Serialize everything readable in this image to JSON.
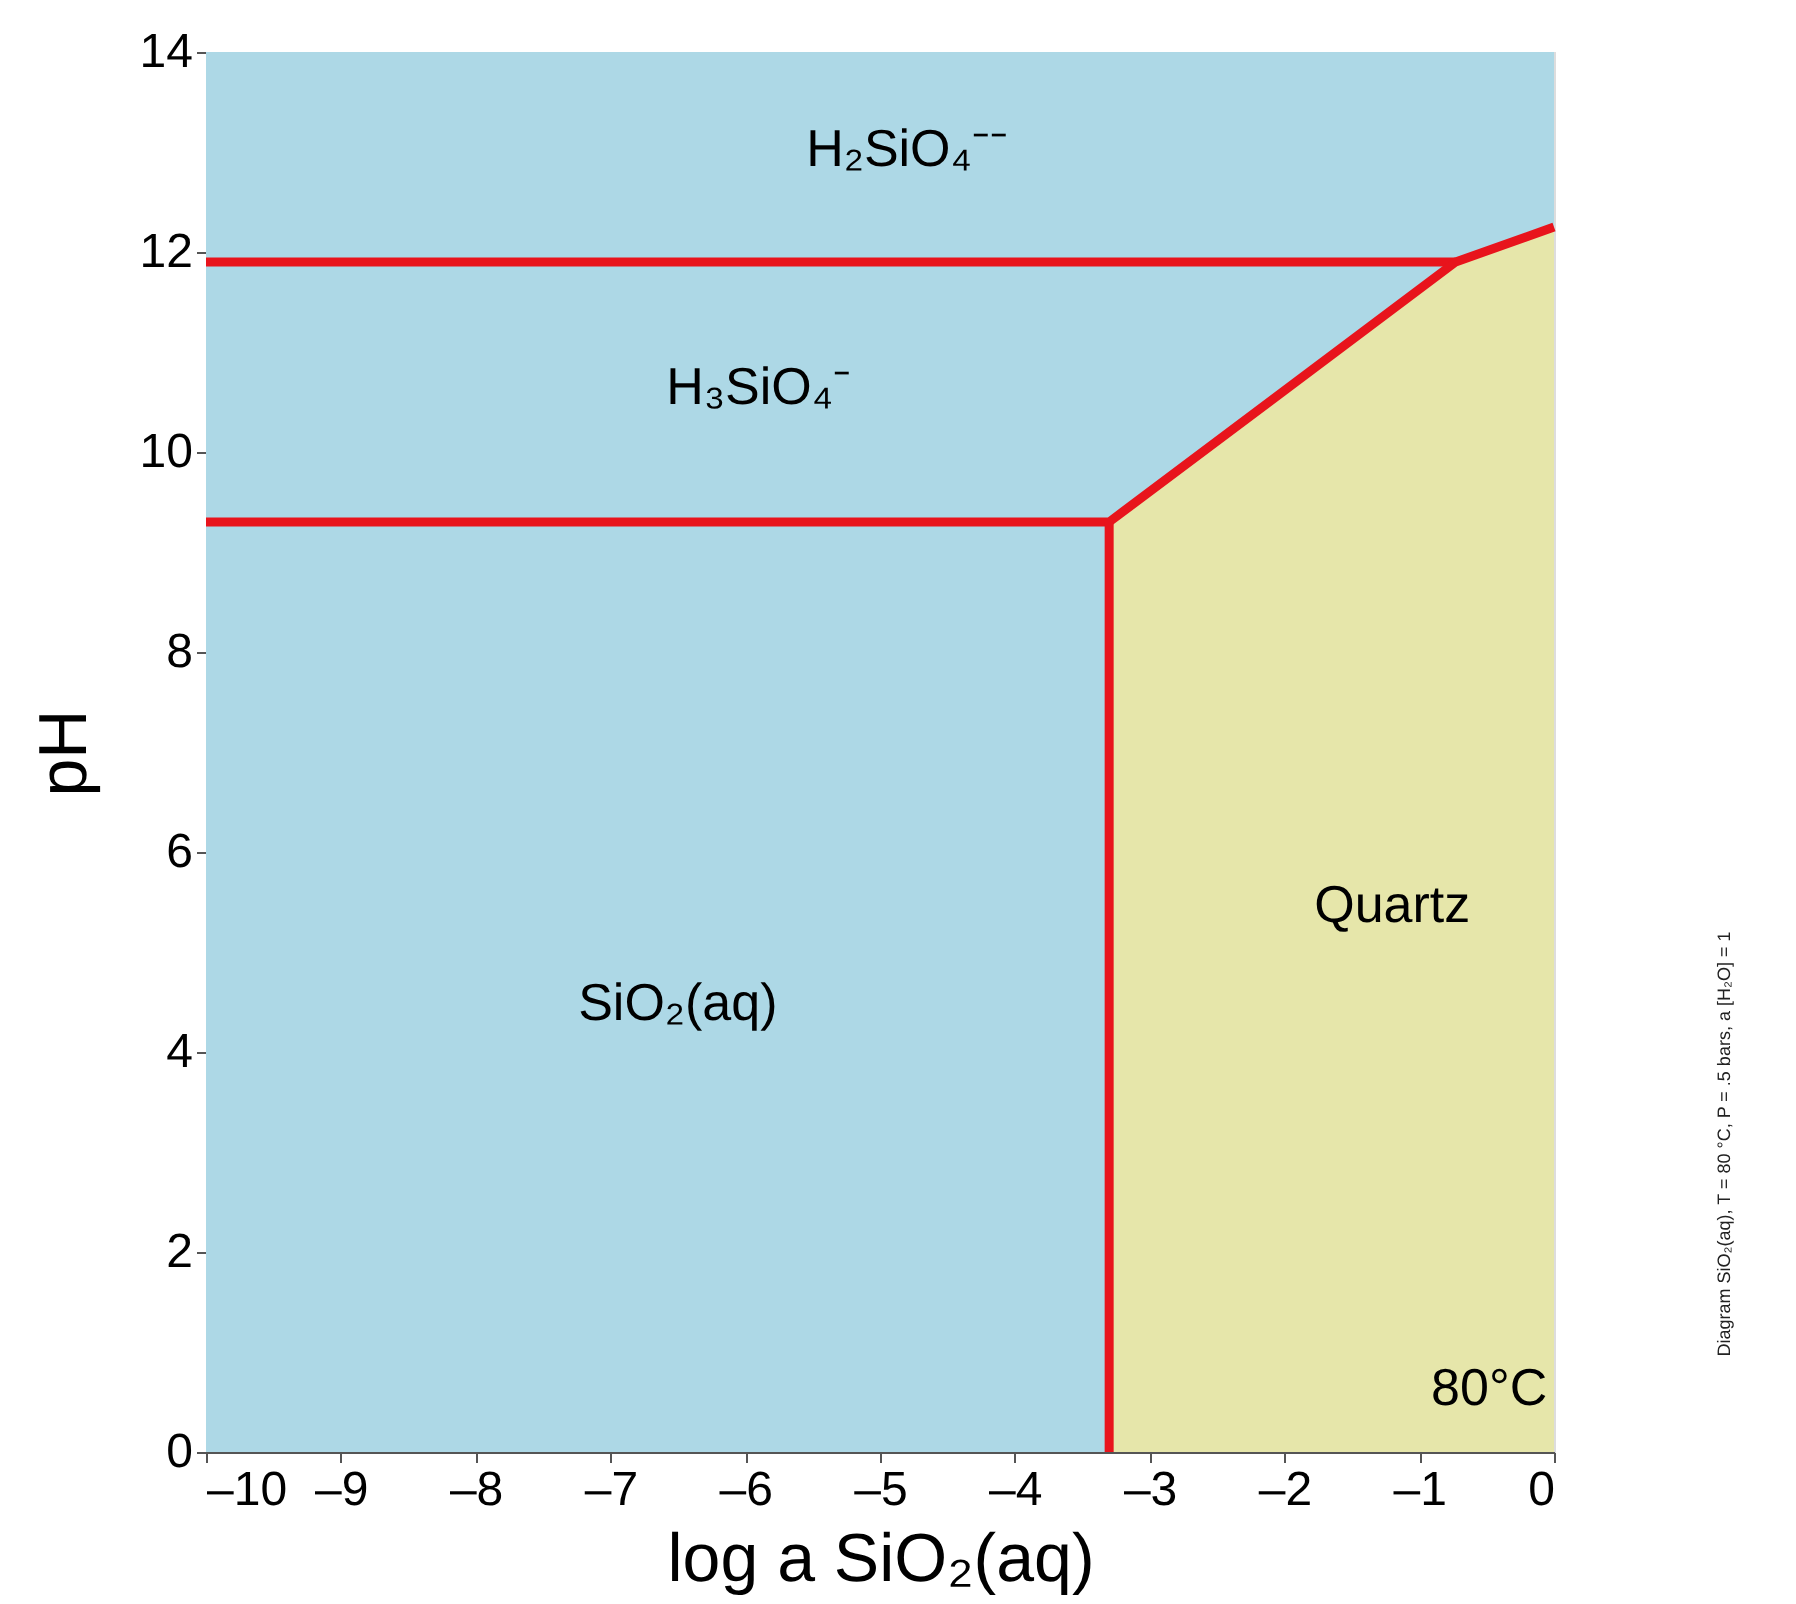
{
  "chart_data": {
    "type": "line",
    "xlabel": "log a SiO₂(aq)",
    "ylabel": "pH",
    "xlim": [
      -10,
      0
    ],
    "xticks": [
      {
        "value": -10,
        "label": "–10"
      },
      {
        "value": -9,
        "label": "–9"
      },
      {
        "value": -8,
        "label": "–8"
      },
      {
        "value": -7,
        "label": "–7"
      },
      {
        "value": -6,
        "label": "–6"
      },
      {
        "value": -5,
        "label": "–5"
      },
      {
        "value": -4,
        "label": "–4"
      },
      {
        "value": -3,
        "label": "–3"
      },
      {
        "value": -2,
        "label": "–2"
      },
      {
        "value": -1,
        "label": "–1"
      },
      0
    ],
    "ylim": [
      0,
      14
    ],
    "yticks": [
      0,
      2,
      4,
      6,
      8,
      10,
      12,
      14
    ],
    "bands": [
      {
        "axis": "x",
        "from": -10,
        "to": 0,
        "color": "#add8e6"
      }
    ],
    "series": [
      {
        "type": "area",
        "color": "#e6e6aa",
        "x": [
          -3.3,
          -0.73,
          0
        ],
        "values": [
          9.3,
          11.9,
          12.25
        ]
      },
      {
        "color": "#e8141c",
        "x": [
          -10,
          -0.73
        ],
        "values": [
          11.9,
          11.9
        ]
      },
      {
        "color": "#e8141c",
        "x": [
          -10,
          -3.3,
          -0.73,
          0
        ],
        "values": [
          9.3,
          9.3,
          11.9,
          12.25
        ]
      },
      {
        "color": "#e8141c",
        "x": [
          -3.3,
          -3.3
        ],
        "values": [
          9.3,
          0
        ]
      }
    ],
    "annotations": [
      "H₂SiO₄⁻⁻",
      "H₃SiO₄⁻",
      "SiO₂(aq)",
      "Quartz",
      "80°C",
      "Diagram SiO₂(aq), T = 80 °C, P = .5 bars, a [H₂O] = 1"
    ]
  }
}
